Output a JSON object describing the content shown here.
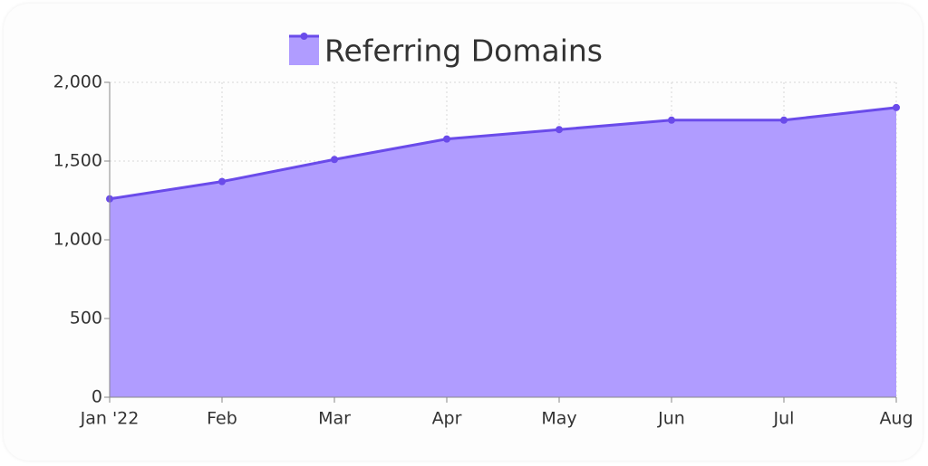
{
  "chart_data": {
    "type": "area",
    "categories": [
      "Jan '22",
      "Feb",
      "Mar",
      "Apr",
      "May",
      "Jun",
      "Jul",
      "Aug"
    ],
    "series": [
      {
        "name": "Referring Domains",
        "color": "#6a4bea",
        "fill": "#b09cff",
        "values": [
          1260,
          1370,
          1510,
          1640,
          1700,
          1760,
          1760,
          1840
        ]
      }
    ],
    "ylim": [
      0,
      2000
    ],
    "yticks": [
      0,
      500,
      {
        "value": 1000,
        "label": "1,000"
      },
      {
        "value": 1500,
        "label": "1,500"
      },
      {
        "value": 2000,
        "label": "2,000"
      }
    ],
    "grid": true,
    "legend": "top"
  }
}
